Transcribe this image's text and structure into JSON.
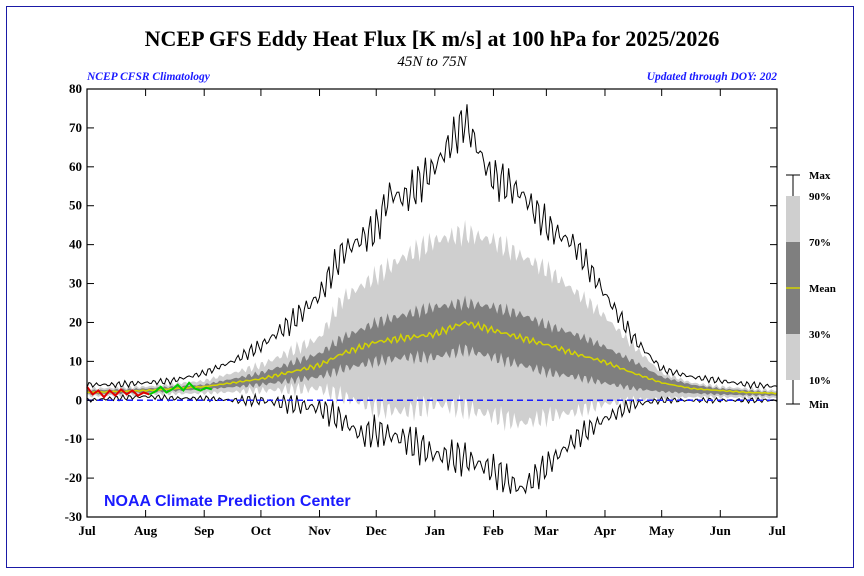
{
  "chart_data": {
    "type": "area",
    "title": "NCEP GFS Eddy Heat Flux [K m/s] at 100 hPa for 2025/2026",
    "subtitle": "45N to 75N",
    "left_note": "NCEP CFSR Climatology",
    "right_note": "Updated through DOY: 202",
    "credit": "NOAA Climate Prediction Center",
    "xlabel": "",
    "ylabel": "",
    "ylim": [
      -30,
      80
    ],
    "yticks": [
      -30,
      -20,
      -10,
      0,
      10,
      20,
      30,
      40,
      50,
      60,
      70,
      80
    ],
    "xticks": [
      "Jul",
      "Aug",
      "Sep",
      "Oct",
      "Nov",
      "Dec",
      "Jan",
      "Feb",
      "Mar",
      "Apr",
      "May",
      "Jun",
      "Jul"
    ],
    "zero_line_color": "#1a1aff",
    "band_colors": {
      "outer": "#cfcfcf",
      "inner": "#7f7f7f",
      "mean": "#d4d400",
      "minmax": "#000000"
    },
    "legend": [
      "Max",
      "90%",
      "70%",
      "Mean",
      "30%",
      "10%",
      "Min"
    ],
    "series": [
      {
        "name": "Max",
        "x": [
          0,
          15,
          31,
          45,
          62,
          77,
          92,
          108,
          123,
          135,
          153,
          160,
          168,
          184,
          200,
          213,
          230,
          245,
          258,
          273,
          289,
          304,
          320,
          335,
          350,
          365
        ],
        "y": [
          4,
          4,
          4.5,
          5,
          7,
          10,
          14,
          20,
          27,
          38,
          44,
          53,
          52,
          60,
          72,
          58,
          53,
          44,
          40,
          28,
          16,
          8,
          6,
          5,
          4,
          3.5
        ]
      },
      {
        "name": "90%",
        "x": [
          0,
          31,
          62,
          92,
          123,
          135,
          153,
          168,
          184,
          200,
          215,
          230,
          245,
          258,
          273,
          289,
          304,
          320,
          335,
          350,
          365
        ],
        "y": [
          3,
          3.5,
          5,
          9,
          16,
          26,
          32,
          37,
          41,
          43,
          41,
          37,
          33,
          28,
          22,
          14,
          7,
          4.5,
          3.5,
          3,
          2.5
        ]
      },
      {
        "name": "70%",
        "x": [
          0,
          31,
          62,
          92,
          123,
          135,
          153,
          168,
          184,
          200,
          215,
          230,
          245,
          258,
          273,
          289,
          304,
          320,
          335,
          350,
          365
        ],
        "y": [
          2.5,
          3,
          4,
          7,
          12,
          16,
          20,
          22,
          24,
          25,
          24,
          22,
          19,
          17,
          14,
          10,
          6,
          4,
          3,
          2.5,
          2
        ]
      },
      {
        "name": "Mean",
        "x": [
          0,
          31,
          62,
          92,
          123,
          135,
          153,
          168,
          184,
          200,
          215,
          230,
          245,
          258,
          273,
          289,
          304,
          320,
          335,
          350,
          365
        ],
        "y": [
          2,
          2.5,
          3.5,
          5.5,
          9,
          12,
          15,
          16,
          17,
          20,
          18,
          16,
          14,
          12,
          10,
          7,
          4.5,
          3,
          2.5,
          2,
          1.8
        ]
      },
      {
        "name": "30%",
        "x": [
          0,
          31,
          62,
          92,
          123,
          135,
          153,
          168,
          184,
          200,
          215,
          230,
          245,
          258,
          273,
          289,
          304,
          320,
          335,
          350,
          365
        ],
        "y": [
          1.5,
          2,
          2.8,
          4,
          6,
          8,
          10,
          11,
          11,
          13,
          11,
          9,
          7,
          6,
          4.5,
          3,
          2.2,
          1.8,
          1.5,
          1.3,
          1.2
        ]
      },
      {
        "name": "10%",
        "x": [
          0,
          31,
          62,
          92,
          123,
          135,
          153,
          168,
          184,
          200,
          215,
          230,
          245,
          258,
          273,
          289,
          304,
          320,
          335,
          350,
          365
        ],
        "y": [
          1,
          1.5,
          1.8,
          2.5,
          3,
          1,
          -2,
          -3,
          -1,
          -2,
          -4,
          -6,
          -4,
          -3,
          -1,
          0,
          0.5,
          0.8,
          0.8,
          0.7,
          0.6
        ]
      },
      {
        "name": "Min",
        "x": [
          0,
          15,
          31,
          45,
          62,
          77,
          92,
          108,
          123,
          135,
          145,
          153,
          168,
          184,
          200,
          215,
          230,
          245,
          258,
          273,
          289,
          304,
          320,
          335,
          350,
          365
        ],
        "y": [
          0,
          0.5,
          1,
          0.5,
          0.5,
          0,
          0,
          -1,
          -2,
          -5,
          -9,
          -8,
          -10,
          -14,
          -15,
          -18,
          -23,
          -16,
          -10,
          -5,
          -1,
          0,
          0,
          0,
          0,
          0
        ]
      },
      {
        "name": "2025/2026",
        "x": [
          0,
          3,
          6,
          9,
          12,
          15,
          18,
          21,
          24,
          27,
          30,
          33,
          36,
          39,
          42,
          45,
          48,
          51,
          54,
          57,
          60,
          63,
          66
        ],
        "y": [
          3.5,
          1.5,
          2.5,
          0.8,
          2.5,
          1.2,
          2.8,
          1.5,
          2.5,
          1.2,
          2,
          1.5,
          2.2,
          3.5,
          2,
          2.8,
          4,
          2.5,
          4.5,
          3,
          2.5,
          3.2,
          2.8
        ]
      }
    ]
  }
}
